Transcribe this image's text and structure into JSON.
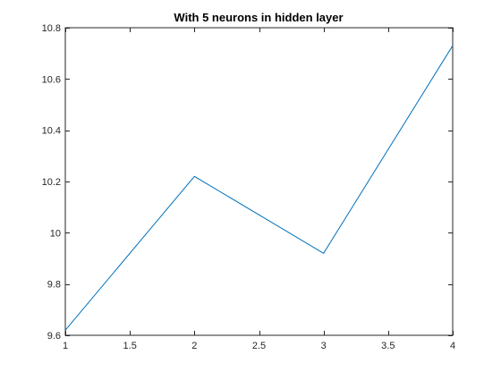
{
  "chart_data": {
    "type": "line",
    "title": "With 5 neurons in hidden layer",
    "xlabel": "",
    "ylabel": "",
    "xlim": [
      1,
      4
    ],
    "ylim": [
      9.6,
      10.8
    ],
    "x_ticks": [
      1,
      1.5,
      2,
      2.5,
      3,
      3.5,
      4
    ],
    "x_tick_labels": [
      "1",
      "1.5",
      "2",
      "2.5",
      "3",
      "3.5",
      "4"
    ],
    "y_ticks": [
      9.6,
      9.8,
      10,
      10.2,
      10.4,
      10.6,
      10.8
    ],
    "y_tick_labels": [
      "9.6",
      "9.8",
      "10",
      "10.2",
      "10.4",
      "10.6",
      "10.8"
    ],
    "grid": false,
    "series": [
      {
        "x": [
          1,
          2,
          3,
          4
        ],
        "y": [
          9.62,
          10.22,
          9.92,
          10.73
        ],
        "color": "#0072BD"
      }
    ],
    "axis_color": "#262626"
  }
}
